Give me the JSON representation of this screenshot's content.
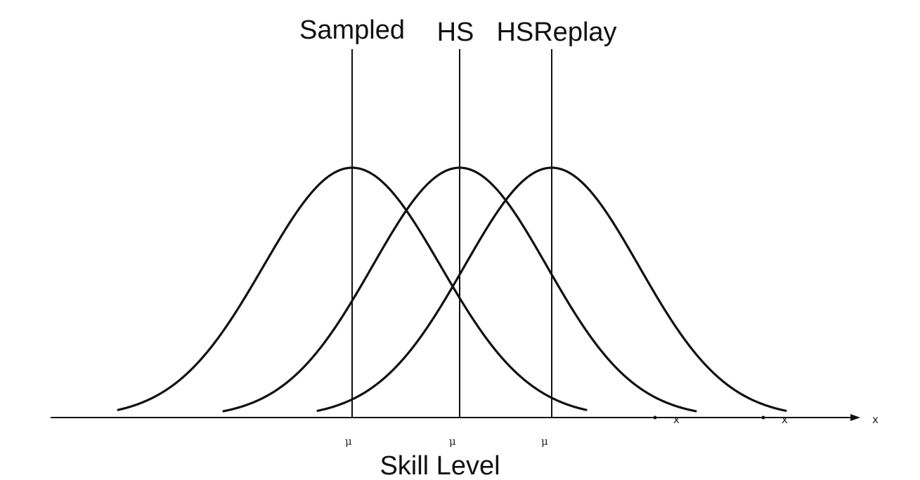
{
  "distributions": [
    {
      "name": "Sampled",
      "mu_label": "μ",
      "color": "#111111"
    },
    {
      "name": "HS",
      "mu_label": "μ",
      "color": "#111111"
    },
    {
      "name": "HSReplay",
      "mu_label": "μ",
      "color": "#111111"
    }
  ],
  "axis": {
    "x_label": "Skill Level",
    "end_label": "x",
    "tail_labels": [
      "x",
      "x"
    ]
  }
}
